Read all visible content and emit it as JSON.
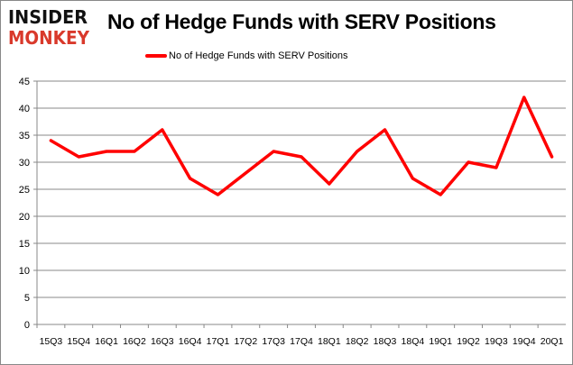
{
  "logo": {
    "line1": "INSIDER",
    "line2": "MONKEY",
    "colors": {
      "line1": "#111111",
      "line2": "#d9392b"
    }
  },
  "chart_data": {
    "type": "line",
    "title": "No of Hedge Funds with SERV Positions",
    "xlabel": "",
    "ylabel": "",
    "categories": [
      "15Q3",
      "15Q4",
      "16Q1",
      "16Q2",
      "16Q3",
      "16Q4",
      "17Q1",
      "17Q2",
      "17Q3",
      "17Q4",
      "18Q1",
      "18Q2",
      "18Q3",
      "18Q4",
      "19Q1",
      "19Q2",
      "19Q3",
      "19Q4",
      "20Q1"
    ],
    "series": [
      {
        "name": "No of Hedge Funds with SERV Positions",
        "color": "#ff0000",
        "values": [
          34,
          31,
          32,
          32,
          36,
          27,
          24,
          28,
          32,
          31,
          26,
          32,
          36,
          27,
          24,
          30,
          29,
          42,
          31
        ]
      }
    ],
    "ylim": [
      0,
      45
    ],
    "yticks": [
      0,
      5,
      10,
      15,
      20,
      25,
      30,
      35,
      40,
      45
    ],
    "grid": true,
    "legend": "top-center"
  }
}
